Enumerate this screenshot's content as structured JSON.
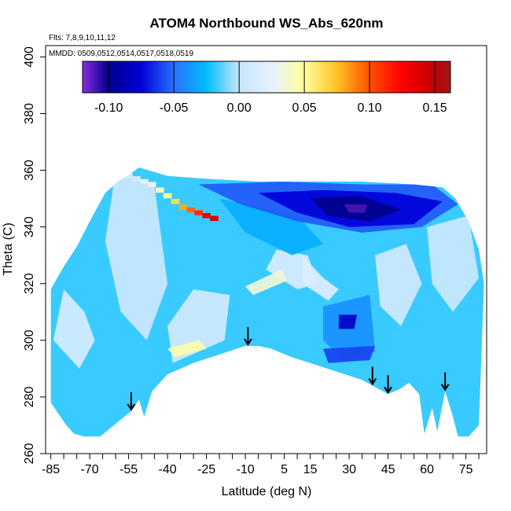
{
  "chart_data": {
    "type": "heatmap",
    "title": "ATOM4 Northbound WS_Abs_620nm",
    "annotations": {
      "flights": "Flts: 7,8,9,10,11,12",
      "dates": "MMDD: 0509,0512,0514,0517,0518,0519"
    },
    "xlabel": "Latitude (deg N)",
    "ylabel": "Theta (C)",
    "xlim": [
      -87,
      83
    ],
    "ylim": [
      260,
      404
    ],
    "x_ticks": [
      -85,
      -70,
      -55,
      -40,
      -25,
      -10,
      5,
      15,
      30,
      45,
      60,
      75
    ],
    "x_minor_ticks": [
      -80,
      -75,
      -65,
      -60,
      -50,
      -45,
      -35,
      -30,
      -20,
      -15,
      -5,
      0,
      10,
      20,
      25,
      35,
      40,
      50,
      55,
      65,
      70,
      80
    ],
    "y_ticks": [
      260,
      280,
      300,
      320,
      340,
      360,
      380,
      400
    ],
    "grid": false,
    "colorbar": {
      "placement": "top inside plot",
      "range": [
        -0.12,
        0.162
      ],
      "ticks": [
        -0.1,
        -0.05,
        0.0,
        0.05,
        0.1,
        0.15
      ],
      "tick_labels": [
        "-0.10",
        "-0.05",
        "0.00",
        "0.05",
        "0.10",
        "0.15"
      ],
      "stops": [
        {
          "v": -0.12,
          "c": "#8a2be2"
        },
        {
          "v": -0.1,
          "c": "#00008b"
        },
        {
          "v": -0.075,
          "c": "#0000d8"
        },
        {
          "v": -0.05,
          "c": "#2a70ff"
        },
        {
          "v": -0.025,
          "c": "#00bfff"
        },
        {
          "v": 0.0,
          "c": "#c6e6ff"
        },
        {
          "v": 0.025,
          "c": "#e6f0ff"
        },
        {
          "v": 0.05,
          "c": "#ffff99"
        },
        {
          "v": 0.075,
          "c": "#ffc125"
        },
        {
          "v": 0.1,
          "c": "#ff5000"
        },
        {
          "v": 0.125,
          "c": "#ff0000"
        },
        {
          "v": 0.15,
          "c": "#c00000"
        },
        {
          "v": 0.162,
          "c": "#a01818"
        }
      ]
    },
    "arrows_at_latitude": [
      -54,
      -9,
      39,
      45,
      67
    ],
    "lower_boundary": [
      [
        -85,
        278
      ],
      [
        -82,
        274
      ],
      [
        -79,
        270
      ],
      [
        -76,
        267
      ],
      [
        -72,
        266
      ],
      [
        -66,
        266
      ],
      [
        -54,
        275
      ],
      [
        -51,
        279
      ],
      [
        -49,
        273
      ],
      [
        -46,
        282
      ],
      [
        -40,
        288
      ],
      [
        -30,
        292
      ],
      [
        -20,
        295
      ],
      [
        -10,
        298
      ],
      [
        -5,
        298
      ],
      [
        0,
        297
      ],
      [
        8,
        294
      ],
      [
        15,
        292
      ],
      [
        25,
        289
      ],
      [
        35,
        286
      ],
      [
        39,
        284
      ],
      [
        45,
        281
      ],
      [
        50,
        283
      ],
      [
        53,
        285
      ],
      [
        57,
        281
      ],
      [
        59,
        267
      ],
      [
        62,
        276
      ],
      [
        64,
        268
      ],
      [
        67,
        282
      ],
      [
        70,
        273
      ],
      [
        72,
        266
      ],
      [
        76,
        266
      ],
      [
        80,
        270
      ]
    ],
    "upper_boundary": [
      [
        -85,
        318
      ],
      [
        -80,
        326
      ],
      [
        -75,
        333
      ],
      [
        -70,
        342
      ],
      [
        -64,
        352
      ],
      [
        -59,
        356
      ],
      [
        -54,
        359
      ],
      [
        -51,
        361
      ],
      [
        -40,
        358
      ],
      [
        -25,
        357
      ],
      [
        -5,
        356
      ],
      [
        15,
        356
      ],
      [
        35,
        356
      ],
      [
        55,
        355
      ],
      [
        66,
        354
      ],
      [
        71,
        350
      ],
      [
        76,
        342
      ],
      [
        80,
        332
      ],
      [
        82,
        320
      ]
    ],
    "regions": [
      {
        "value": -0.02,
        "polygon": [
          [
            -85,
            266
          ],
          [
            83,
            266
          ],
          [
            83,
            362
          ],
          [
            -85,
            362
          ]
        ]
      },
      {
        "value": 0.005,
        "polygon": [
          [
            -60,
            360
          ],
          [
            -45,
            354
          ],
          [
            -40,
            320
          ],
          [
            -48,
            300
          ],
          [
            -58,
            310
          ],
          [
            -64,
            335
          ]
        ]
      },
      {
        "value": 0.012,
        "polygon": [
          [
            -80,
            318
          ],
          [
            -72,
            310
          ],
          [
            -68,
            300
          ],
          [
            -74,
            290
          ],
          [
            -84,
            300
          ]
        ]
      },
      {
        "value": 0.015,
        "polygon": [
          [
            -2,
            325
          ],
          [
            10,
            318
          ],
          [
            18,
            320
          ],
          [
            14,
            330
          ],
          [
            2,
            332
          ]
        ]
      },
      {
        "value": 0.018,
        "polygon": [
          [
            12,
            330
          ],
          [
            20,
            322
          ],
          [
            26,
            318
          ],
          [
            22,
            314
          ],
          [
            12,
            320
          ]
        ]
      },
      {
        "value": 0.01,
        "polygon": [
          [
            -38,
            292
          ],
          [
            -18,
            300
          ],
          [
            -16,
            316
          ],
          [
            -30,
            318
          ],
          [
            -40,
            305
          ]
        ]
      },
      {
        "value": 0.008,
        "polygon": [
          [
            40,
            330
          ],
          [
            52,
            334
          ],
          [
            58,
            320
          ],
          [
            50,
            305
          ],
          [
            42,
            312
          ]
        ]
      },
      {
        "value": 0.004,
        "polygon": [
          [
            60,
            340
          ],
          [
            76,
            344
          ],
          [
            80,
            322
          ],
          [
            70,
            310
          ],
          [
            62,
            320
          ]
        ]
      },
      {
        "value": -0.03,
        "polygon": [
          [
            -20,
            350
          ],
          [
            10,
            344
          ],
          [
            20,
            334
          ],
          [
            8,
            330
          ],
          [
            -10,
            338
          ]
        ]
      },
      {
        "value": -0.04,
        "polygon": [
          [
            20,
            312
          ],
          [
            38,
            316
          ],
          [
            40,
            296
          ],
          [
            28,
            293
          ],
          [
            20,
            300
          ]
        ]
      },
      {
        "value": -0.055,
        "polygon": [
          [
            -28,
            355
          ],
          [
            5,
            356
          ],
          [
            35,
            355
          ],
          [
            62,
            355
          ],
          [
            72,
            348
          ],
          [
            58,
            340
          ],
          [
            35,
            338
          ],
          [
            10,
            342
          ],
          [
            -12,
            348
          ]
        ]
      },
      {
        "value": -0.075,
        "polygon": [
          [
            -5,
            352
          ],
          [
            20,
            353
          ],
          [
            48,
            352
          ],
          [
            66,
            349
          ],
          [
            55,
            341
          ],
          [
            30,
            340
          ],
          [
            10,
            345
          ]
        ]
      },
      {
        "value": -0.1,
        "polygon": [
          [
            15,
            350
          ],
          [
            34,
            351
          ],
          [
            50,
            346
          ],
          [
            38,
            342
          ],
          [
            22,
            344
          ]
        ]
      },
      {
        "value": -0.11,
        "polygon": [
          [
            28,
            348
          ],
          [
            37,
            348
          ],
          [
            36,
            345
          ],
          [
            30,
            345
          ]
        ]
      },
      {
        "value": -0.08,
        "polygon": [
          [
            26,
            309
          ],
          [
            33,
            309
          ],
          [
            32,
            304
          ],
          [
            26,
            304
          ]
        ]
      },
      {
        "value": -0.06,
        "polygon": [
          [
            20,
            297
          ],
          [
            40,
            298
          ],
          [
            38,
            293
          ],
          [
            22,
            292
          ]
        ]
      },
      {
        "value": 0.045,
        "polygon": [
          [
            -40,
            297
          ],
          [
            -28,
            300
          ],
          [
            -25,
            297
          ],
          [
            -37,
            294
          ]
        ]
      },
      {
        "value": 0.035,
        "polygon": [
          [
            -10,
            319
          ],
          [
            4,
            325
          ],
          [
            6,
            321
          ],
          [
            -7,
            316
          ]
        ]
      }
    ],
    "hot_streak": [
      {
        "lat": -55,
        "theta": 358,
        "value": 0.01
      },
      {
        "lat": -52,
        "theta": 357,
        "value": 0.015
      },
      {
        "lat": -49,
        "theta": 356,
        "value": 0.02
      },
      {
        "lat": -46,
        "theta": 355,
        "value": 0.03
      },
      {
        "lat": -43,
        "theta": 353,
        "value": 0.04
      },
      {
        "lat": -40,
        "theta": 351,
        "value": 0.05
      },
      {
        "lat": -37,
        "theta": 349,
        "value": 0.065
      },
      {
        "lat": -34,
        "theta": 347,
        "value": 0.08
      },
      {
        "lat": -31,
        "theta": 346,
        "value": 0.095
      },
      {
        "lat": -28,
        "theta": 345,
        "value": 0.11
      },
      {
        "lat": -25,
        "theta": 344,
        "value": 0.13
      },
      {
        "lat": -22,
        "theta": 343,
        "value": 0.14
      }
    ]
  }
}
